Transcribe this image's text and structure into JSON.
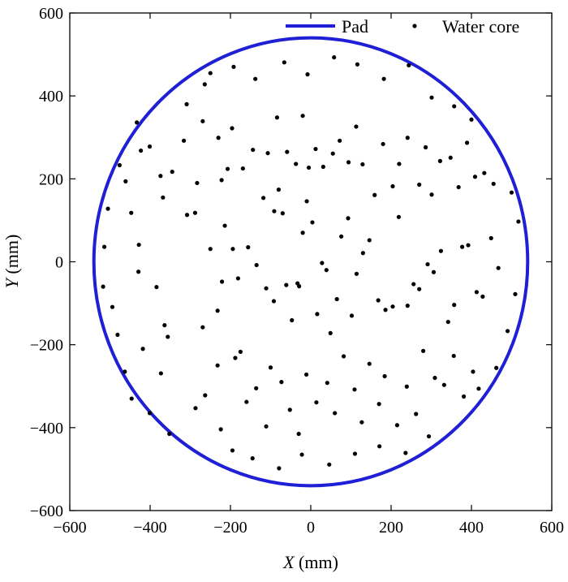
{
  "chart_data": {
    "type": "scatter",
    "xlabel": {
      "var": "X",
      "unit": " (mm)"
    },
    "ylabel": {
      "var": "Y",
      "unit": " (mm)"
    },
    "xlim": [
      -600,
      600
    ],
    "ylim": [
      -600,
      600
    ],
    "xticks": [
      -600,
      -400,
      -200,
      0,
      200,
      400,
      600
    ],
    "yticks": [
      -600,
      -400,
      -200,
      0,
      200,
      400,
      600
    ],
    "xtick_labels": [
      "−600",
      "−400",
      "−200",
      "0",
      "200",
      "400",
      "600"
    ],
    "ytick_labels": [
      "−600",
      "−400",
      "−200",
      "0",
      "200",
      "400",
      "600"
    ],
    "grid": false,
    "legend_position": "top-right",
    "series": [
      {
        "name": "Pad",
        "kind": "circle-outline",
        "center": [
          0,
          0
        ],
        "radius_mm": 540,
        "color": "#1f1fd6"
      },
      {
        "name": "Water core",
        "kind": "scatter",
        "color": "#000000",
        "points": [
          [
            -514,
            36
          ],
          [
            -428,
            41
          ],
          [
            -384,
            -61
          ],
          [
            -373,
            -269
          ],
          [
            -356,
            -181
          ],
          [
            -418,
            -210
          ],
          [
            -364,
            -153
          ],
          [
            -308,
            113
          ],
          [
            -288,
            118
          ],
          [
            -269,
            -158
          ],
          [
            -250,
            31
          ],
          [
            -232,
            -118
          ],
          [
            -221,
            -48
          ],
          [
            -214,
            87
          ],
          [
            -207,
            224
          ],
          [
            -194,
            31
          ],
          [
            -181,
            -40
          ],
          [
            -175,
            -217
          ],
          [
            -156,
            35
          ],
          [
            -135,
            -8
          ],
          [
            -111,
            -64
          ],
          [
            -92,
            -95
          ],
          [
            -91,
            122
          ],
          [
            -80,
            174
          ],
          [
            -70,
            117
          ],
          [
            -61,
            -56
          ],
          [
            -47,
            -141
          ],
          [
            -33,
            -52
          ],
          [
            -29,
            -59
          ],
          [
            -20,
            70
          ],
          [
            -10,
            146
          ],
          [
            4,
            95
          ],
          [
            16,
            -126
          ],
          [
            28,
            -3
          ],
          [
            39,
            -20
          ],
          [
            49,
            -172
          ],
          [
            65,
            -90
          ],
          [
            76,
            61
          ],
          [
            93,
            105
          ],
          [
            102,
            -130
          ],
          [
            114,
            -29
          ],
          [
            130,
            21
          ],
          [
            146,
            52
          ],
          [
            168,
            -93
          ],
          [
            186,
            -116
          ],
          [
            204,
            -108
          ],
          [
            219,
            108
          ],
          [
            241,
            -106
          ],
          [
            256,
            -54
          ],
          [
            270,
            -66
          ],
          [
            291,
            -6
          ],
          [
            306,
            -25
          ],
          [
            324,
            26
          ],
          [
            342,
            -145
          ],
          [
            357,
            -104
          ],
          [
            377,
            36
          ],
          [
            392,
            40
          ],
          [
            413,
            -73
          ],
          [
            428,
            -84
          ],
          [
            449,
            57
          ],
          [
            467,
            -15
          ],
          [
            -476,
            233
          ],
          [
            -423,
            268
          ],
          [
            -401,
            278
          ],
          [
            -374,
            207
          ],
          [
            -368,
            155
          ],
          [
            -345,
            217
          ],
          [
            -316,
            292
          ],
          [
            -283,
            190
          ],
          [
            -269,
            339
          ],
          [
            -230,
            299
          ],
          [
            -222,
            197
          ],
          [
            -196,
            322
          ],
          [
            -169,
            225
          ],
          [
            -144,
            270
          ],
          [
            -118,
            154
          ],
          [
            -107,
            262
          ],
          [
            -84,
            348
          ],
          [
            -59,
            265
          ],
          [
            -37,
            236
          ],
          [
            -20,
            352
          ],
          [
            -5,
            227
          ],
          [
            12,
            272
          ],
          [
            31,
            229
          ],
          [
            55,
            261
          ],
          [
            72,
            292
          ],
          [
            94,
            240
          ],
          [
            113,
            326
          ],
          [
            129,
            235
          ],
          [
            159,
            161
          ],
          [
            180,
            284
          ],
          [
            204,
            182
          ],
          [
            220,
            236
          ],
          [
            241,
            299
          ],
          [
            270,
            186
          ],
          [
            286,
            276
          ],
          [
            301,
            162
          ],
          [
            322,
            243
          ],
          [
            348,
            251
          ],
          [
            368,
            180
          ],
          [
            389,
            287
          ],
          [
            409,
            205
          ],
          [
            432,
            214
          ],
          [
            455,
            188
          ],
          [
            -287,
            -353
          ],
          [
            -263,
            -322
          ],
          [
            -232,
            -250
          ],
          [
            -224,
            -404
          ],
          [
            -188,
            -232
          ],
          [
            -160,
            -338
          ],
          [
            -136,
            -305
          ],
          [
            -111,
            -397
          ],
          [
            -100,
            -255
          ],
          [
            -73,
            -290
          ],
          [
            -52,
            -357
          ],
          [
            -30,
            -415
          ],
          [
            -11,
            -272
          ],
          [
            14,
            -339
          ],
          [
            41,
            -292
          ],
          [
            60,
            -365
          ],
          [
            82,
            -228
          ],
          [
            109,
            -308
          ],
          [
            127,
            -387
          ],
          [
            146,
            -246
          ],
          [
            170,
            -343
          ],
          [
            184,
            -276
          ],
          [
            215,
            -394
          ],
          [
            239,
            -301
          ],
          [
            262,
            -367
          ],
          [
            280,
            -215
          ],
          [
            309,
            -280
          ],
          [
            332,
            -297
          ],
          [
            356,
            -227
          ],
          [
            381,
            -325
          ],
          [
            404,
            -265
          ],
          [
            -195,
            -455
          ],
          [
            -145,
            -474
          ],
          [
            -79,
            -498
          ],
          [
            -22,
            -465
          ],
          [
            46,
            -489
          ],
          [
            110,
            -463
          ],
          [
            171,
            -445
          ],
          [
            236,
            -461
          ],
          [
            294,
            -421
          ],
          [
            -250,
            455
          ],
          [
            -192,
            470
          ],
          [
            -138,
            441
          ],
          [
            -66,
            481
          ],
          [
            -8,
            452
          ],
          [
            58,
            493
          ],
          [
            116,
            476
          ],
          [
            182,
            441
          ],
          [
            244,
            474
          ],
          [
            301,
            396
          ],
          [
            -494,
            -109
          ],
          [
            -481,
            -176
          ],
          [
            -463,
            -265
          ],
          [
            -446,
            -330
          ],
          [
            -429,
            -24
          ],
          [
            -447,
            118
          ],
          [
            -461,
            194
          ],
          [
            -433,
            336
          ],
          [
            -401,
            -365
          ],
          [
            -352,
            -415
          ],
          [
            -309,
            380
          ],
          [
            -264,
            428
          ],
          [
            357,
            375
          ],
          [
            400,
            343
          ],
          [
            418,
            -306
          ],
          [
            462,
            -256
          ],
          [
            490,
            -167
          ],
          [
            500,
            167
          ],
          [
            -517,
            -60
          ],
          [
            -505,
            128
          ],
          [
            509,
            -78
          ],
          [
            517,
            97
          ]
        ]
      }
    ]
  }
}
